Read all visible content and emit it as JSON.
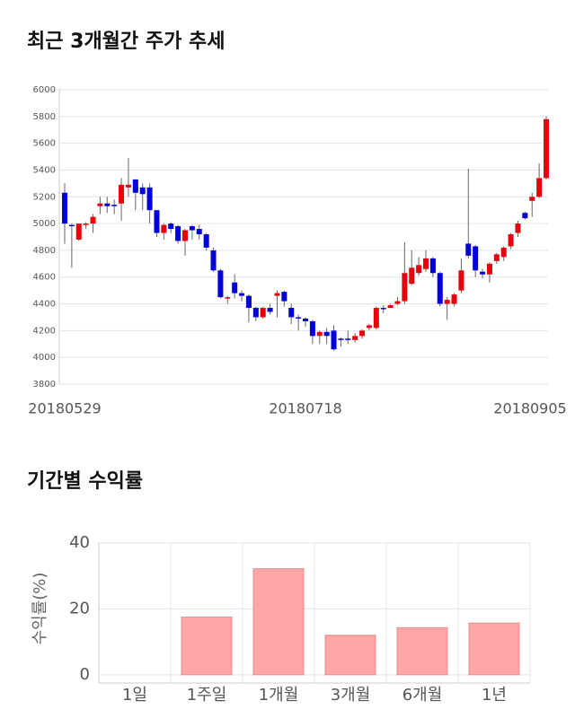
{
  "chart_data": [
    {
      "type": "candlestick",
      "title": "최근 3개월간 주가 추세",
      "categories": [
        "20180529",
        null,
        null,
        null,
        null,
        null,
        null,
        null,
        null,
        null,
        null,
        null,
        null,
        null,
        null,
        null,
        null,
        null,
        null,
        null,
        null,
        null,
        null,
        null,
        null,
        null,
        null,
        null,
        null,
        null,
        null,
        null,
        null,
        null,
        "20180718",
        null,
        null,
        null,
        null,
        null,
        null,
        null,
        null,
        null,
        null,
        null,
        null,
        null,
        null,
        null,
        null,
        null,
        null,
        null,
        null,
        null,
        null,
        null,
        null,
        null,
        null,
        null,
        null,
        null,
        null,
        null,
        null,
        null,
        "20180905"
      ],
      "open": [
        5230,
        4990,
        4880,
        4990,
        5000,
        5130,
        5150,
        5140,
        5150,
        5270,
        5330,
        5270,
        5270,
        5100,
        4930,
        5000,
        4980,
        4870,
        4980,
        4960,
        4920,
        4800,
        4650,
        4450,
        4560,
        4480,
        4460,
        4370,
        4300,
        4370,
        4460,
        4490,
        4370,
        4300,
        4290,
        4270,
        4160,
        4190,
        4200,
        4140,
        4140,
        4130,
        4160,
        4220,
        4220,
        4370,
        4370,
        4400,
        4420,
        4550,
        4630,
        4660,
        4740,
        4630,
        4400,
        4400,
        4500,
        4850,
        4830,
        4640,
        4620,
        4720,
        4750,
        4830,
        4930,
        5080,
        5170,
        5200,
        5340
      ],
      "high": [
        5300,
        5000,
        5000,
        5010,
        5070,
        5200,
        5200,
        5180,
        5340,
        5490,
        5330,
        5300,
        5300,
        5100,
        5000,
        5010,
        4990,
        4960,
        4990,
        4990,
        4930,
        4820,
        4660,
        4460,
        4620,
        4500,
        4470,
        4380,
        4380,
        4400,
        4500,
        4500,
        4400,
        4320,
        4300,
        4280,
        4200,
        4220,
        4240,
        4150,
        4200,
        4180,
        4210,
        4250,
        4380,
        4390,
        4400,
        4450,
        4860,
        4800,
        4750,
        4800,
        4750,
        4640,
        4450,
        4480,
        4740,
        5410,
        4840,
        4660,
        4710,
        4780,
        4830,
        4930,
        5020,
        5090,
        5230,
        5450,
        5800
      ],
      "low": [
        4850,
        4670,
        4870,
        4960,
        4930,
        5070,
        5080,
        5070,
        5020,
        5200,
        5100,
        5100,
        5000,
        4900,
        4880,
        4930,
        4850,
        4760,
        4880,
        4880,
        4800,
        4640,
        4440,
        4400,
        4440,
        4420,
        4260,
        4270,
        4290,
        4320,
        4300,
        4380,
        4250,
        4200,
        4230,
        4100,
        4100,
        4100,
        4050,
        4080,
        4100,
        4110,
        4140,
        4200,
        4210,
        4330,
        4370,
        4390,
        4400,
        4540,
        4610,
        4640,
        4600,
        4380,
        4280,
        4380,
        4480,
        4740,
        4600,
        4590,
        4560,
        4700,
        4720,
        4810,
        4900,
        5030,
        5050,
        5190,
        5330
      ],
      "close": [
        5000,
        4980,
        5000,
        5000,
        5050,
        5150,
        5130,
        5130,
        5290,
        5290,
        5230,
        5220,
        5100,
        4930,
        4990,
        4960,
        4870,
        4950,
        4950,
        4920,
        4820,
        4650,
        4450,
        4450,
        4480,
        4460,
        4370,
        4300,
        4370,
        4340,
        4480,
        4420,
        4300,
        4290,
        4270,
        4160,
        4190,
        4160,
        4060,
        4130,
        4130,
        4160,
        4200,
        4240,
        4370,
        4360,
        4390,
        4420,
        4630,
        4670,
        4690,
        4740,
        4630,
        4400,
        4430,
        4470,
        4650,
        4760,
        4650,
        4620,
        4700,
        4770,
        4820,
        4920,
        5000,
        5040,
        5200,
        5340,
        5780
      ],
      "up_color": "#e8000b",
      "down_color": "#0000d8",
      "ylim": [
        3800,
        6000
      ],
      "yticks": [
        3800,
        4000,
        4200,
        4400,
        4600,
        4800,
        5000,
        5200,
        5400,
        5600,
        5800,
        6000
      ],
      "grid": true
    },
    {
      "type": "bar",
      "title": "기간별 수익률",
      "ylabel": "수익률(%)",
      "categories": [
        "1일",
        "1주일",
        "1개월",
        "3개월",
        "6개월",
        "1년"
      ],
      "values": [
        0,
        17.5,
        32.2,
        12,
        14.3,
        15.7
      ],
      "color": "#ffa6a6",
      "ylim": [
        -2.5,
        40
      ],
      "yticks": [
        0,
        20,
        40
      ],
      "grid": true
    }
  ]
}
